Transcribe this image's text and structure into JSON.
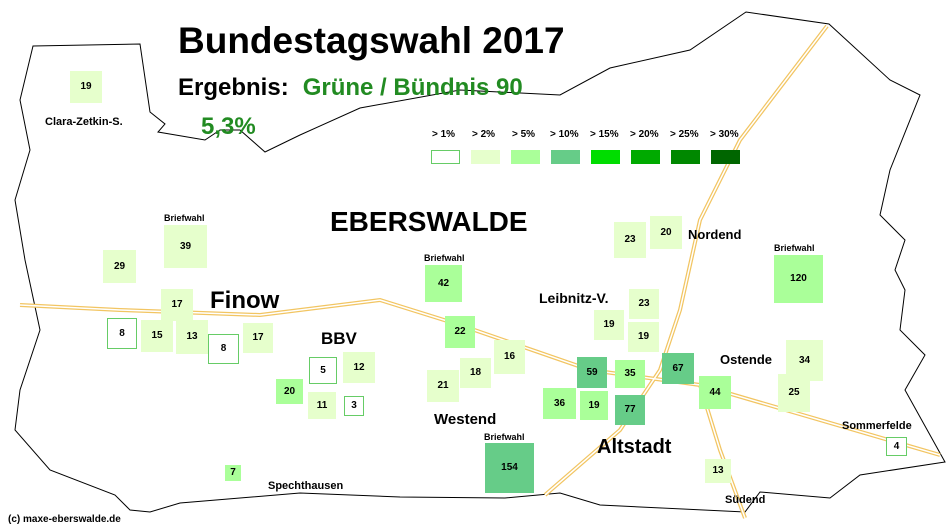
{
  "title": "Bundestagswahl 2017",
  "result_label": "Ergebnis:",
  "party": "Grüne / Bündnis 90",
  "result_percent": "5,3%",
  "colors": {
    "party_text": "#228b22",
    "roads": "#f2c562",
    "boundary": "#000000"
  },
  "legend": [
    {
      "label": "> 1%",
      "color": "#ffffff",
      "border": "#66cc66"
    },
    {
      "label": "> 2%",
      "color": "#e6ffcc",
      "border": "#e6ffcc"
    },
    {
      "label": "> 5%",
      "color": "#aaff99",
      "border": "#aaff99"
    },
    {
      "label": "> 10%",
      "color": "#66cc88",
      "border": "#66cc88"
    },
    {
      "label": "> 15%",
      "color": "#00dd00",
      "border": "#00dd00"
    },
    {
      "label": "> 20%",
      "color": "#00aa00",
      "border": "#00aa00"
    },
    {
      "label": "> 25%",
      "color": "#008800",
      "border": "#008800"
    },
    {
      "label": "> 30%",
      "color": "#006600",
      "border": "#006600"
    }
  ],
  "labels": {
    "city": "EBERSWALDE",
    "finow": "Finow",
    "bbv": "BBV",
    "westend": "Westend",
    "altstadt": "Altstadt",
    "nordend": "Nordend",
    "leibnitz": "Leibnitz-V.",
    "ostende": "Ostende",
    "sommerfelde": "Sommerfelde",
    "suedend": "Südend",
    "spechthausen": "Spechthausen",
    "clara": "Clara-Zetkin-S.",
    "briefwahl": "Briefwahl",
    "copyright": "(c) maxe-eberswalde.de"
  },
  "districts": [
    {
      "value": "19",
      "level": 1
    },
    {
      "value": "39",
      "level": 1
    },
    {
      "value": "29",
      "level": 1
    },
    {
      "value": "17",
      "level": 1
    },
    {
      "value": "8",
      "level": 0
    },
    {
      "value": "15",
      "level": 1
    },
    {
      "value": "13",
      "level": 1
    },
    {
      "value": "8",
      "level": 0
    },
    {
      "value": "17",
      "level": 1
    },
    {
      "value": "20",
      "level": 2
    },
    {
      "value": "5",
      "level": 0
    },
    {
      "value": "12",
      "level": 1
    },
    {
      "value": "11",
      "level": 1
    },
    {
      "value": "3",
      "level": 0
    },
    {
      "value": "7",
      "level": 2
    },
    {
      "value": "42",
      "level": 2
    },
    {
      "value": "22",
      "level": 2
    },
    {
      "value": "21",
      "level": 1
    },
    {
      "value": "18",
      "level": 1
    },
    {
      "value": "16",
      "level": 1
    },
    {
      "value": "154",
      "level": 3
    },
    {
      "value": "36",
      "level": 2
    },
    {
      "value": "59",
      "level": 3
    },
    {
      "value": "19",
      "level": 2
    },
    {
      "value": "35",
      "level": 2
    },
    {
      "value": "77",
      "level": 3
    },
    {
      "value": "23",
      "level": 1
    },
    {
      "value": "20",
      "level": 1
    },
    {
      "value": "23",
      "level": 1
    },
    {
      "value": "19",
      "level": 1
    },
    {
      "value": "19",
      "level": 1
    },
    {
      "value": "67",
      "level": 3
    },
    {
      "value": "44",
      "level": 2
    },
    {
      "value": "13",
      "level": 1
    },
    {
      "value": "120",
      "level": 2
    },
    {
      "value": "34",
      "level": 1
    },
    {
      "value": "25",
      "level": 1
    },
    {
      "value": "4",
      "level": 0
    }
  ]
}
